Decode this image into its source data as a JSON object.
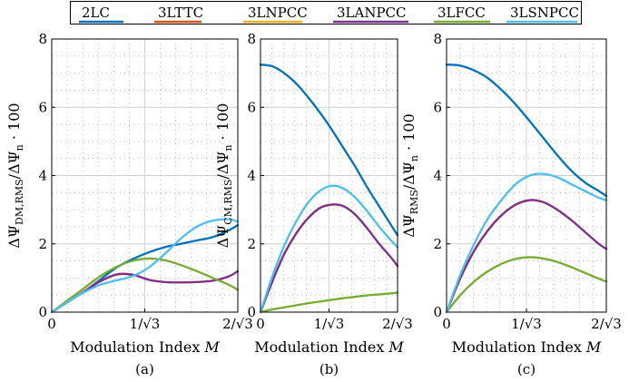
{
  "legend": {
    "entries": [
      {
        "label": "2LC",
        "color": "#0072BD"
      },
      {
        "label": "3LTTC",
        "color": "#D95319"
      },
      {
        "label": "3LNPCC",
        "color": "#EDB120"
      },
      {
        "label": "3LANPCC",
        "color": "#7E2F8E"
      },
      {
        "label": "3LFCC",
        "color": "#77AC30"
      },
      {
        "label": "3LSNPCC",
        "color": "#4DBEEE"
      }
    ]
  },
  "chart_data": [
    {
      "type": "line",
      "panel_label": "(a)",
      "xlabel": "Modulation Index M",
      "ylabel": "ΔΨ_DM,RMS / ΔΨ_n · 100",
      "ylabel_main": "ΔΨ",
      "ylabel_sub": "DM,RMS",
      "ylabel_rest": "/ΔΨ",
      "ylabel_sub2": "n",
      "ylabel_tail": " · 100",
      "xlim": [
        0,
        1.1547
      ],
      "ylim": [
        0,
        8
      ],
      "xticks": [
        0,
        0.5774,
        1.1547
      ],
      "xtick_labels": [
        "0",
        "1/√3",
        "2/√3"
      ],
      "yticks": [
        0,
        2,
        4,
        6,
        8
      ],
      "ytick_labels": [
        "0",
        "2",
        "4",
        "6",
        "8"
      ],
      "grid": true,
      "series": [
        {
          "name": "2LC",
          "x": [
            0,
            0.1,
            0.2,
            0.3,
            0.4,
            0.5,
            0.6,
            0.7,
            0.8,
            0.9,
            1.0,
            1.1,
            1.1547
          ],
          "y": [
            0,
            0.3,
            0.6,
            0.95,
            1.3,
            1.55,
            1.75,
            1.9,
            2.0,
            2.1,
            2.2,
            2.4,
            2.55
          ]
        },
        {
          "name": "3LTTC",
          "x": [
            0,
            0.1,
            0.2,
            0.3,
            0.4,
            0.45,
            0.5
          ],
          "y": [
            0,
            0.3,
            0.6,
            0.9,
            1.1,
            1.12,
            1.08
          ]
        },
        {
          "name": "3LNPCC",
          "x": [
            0,
            0.1,
            0.2,
            0.3,
            0.4,
            0.5,
            0.6,
            0.7,
            0.8,
            0.9,
            1.0
          ],
          "y": [
            0,
            0.3,
            0.6,
            0.9,
            1.1,
            1.1,
            0.95,
            0.88,
            0.87,
            0.88,
            0.92
          ]
        },
        {
          "name": "3LANPCC",
          "x": [
            0,
            0.1,
            0.2,
            0.3,
            0.4,
            0.5,
            0.6,
            0.7,
            0.8,
            0.9,
            1.0,
            1.1,
            1.1547
          ],
          "y": [
            0,
            0.3,
            0.6,
            0.9,
            1.1,
            1.1,
            0.95,
            0.88,
            0.87,
            0.88,
            0.92,
            1.05,
            1.2
          ]
        },
        {
          "name": "3LFCC",
          "x": [
            0,
            0.1,
            0.2,
            0.3,
            0.4,
            0.5,
            0.6,
            0.7,
            0.8,
            0.9,
            1.0,
            1.1,
            1.1547
          ],
          "y": [
            0,
            0.35,
            0.7,
            1.05,
            1.32,
            1.5,
            1.57,
            1.52,
            1.38,
            1.2,
            1.0,
            0.8,
            0.65
          ]
        },
        {
          "name": "3LSNPCC",
          "x": [
            0,
            0.1,
            0.2,
            0.3,
            0.4,
            0.5,
            0.6,
            0.7,
            0.8,
            0.9,
            1.0,
            1.1,
            1.1547
          ],
          "y": [
            0,
            0.3,
            0.58,
            0.8,
            0.93,
            1.05,
            1.3,
            1.7,
            2.15,
            2.5,
            2.68,
            2.72,
            2.65
          ]
        }
      ]
    },
    {
      "type": "line",
      "panel_label": "(b)",
      "xlabel": "Modulation Index M",
      "ylabel": "ΔΨ_CM,RMS / ΔΨ_n · 100",
      "ylabel_main": "ΔΨ",
      "ylabel_sub": "CM,RMS",
      "ylabel_rest": "/ΔΨ",
      "ylabel_sub2": "n",
      "ylabel_tail": " · 100",
      "xlim": [
        0,
        1.1547
      ],
      "ylim": [
        0,
        8
      ],
      "xticks": [
        0,
        0.5774,
        1.1547
      ],
      "xtick_labels": [
        "0",
        "1/√3",
        "2/√3"
      ],
      "yticks": [
        0,
        2,
        4,
        6,
        8
      ],
      "ytick_labels": [
        "0",
        "2",
        "4",
        "6",
        "8"
      ],
      "grid": true,
      "series": [
        {
          "name": "2LC",
          "x": [
            0,
            0.1,
            0.2,
            0.3,
            0.4,
            0.5,
            0.6,
            0.7,
            0.8,
            0.9,
            1.0,
            1.1,
            1.1547
          ],
          "y": [
            7.25,
            7.2,
            7.0,
            6.7,
            6.3,
            5.85,
            5.35,
            4.8,
            4.25,
            3.65,
            3.1,
            2.55,
            2.25
          ]
        },
        {
          "name": "3LTTC",
          "x": [
            0,
            0.1,
            0.2,
            0.3,
            0.4,
            0.5,
            0.6,
            0.65
          ],
          "y": [
            0,
            0.9,
            1.7,
            2.3,
            2.75,
            3.05,
            3.15,
            3.15
          ]
        },
        {
          "name": "3LNPCC",
          "x": [
            0,
            0.1,
            0.2,
            0.3,
            0.4,
            0.5,
            0.6,
            0.7,
            0.8,
            0.9
          ],
          "y": [
            0,
            0.9,
            1.7,
            2.3,
            2.75,
            3.05,
            3.15,
            3.1,
            2.85,
            2.45
          ]
        },
        {
          "name": "3LANPCC",
          "x": [
            0,
            0.1,
            0.2,
            0.3,
            0.4,
            0.5,
            0.6,
            0.7,
            0.8,
            0.9,
            1.0,
            1.1,
            1.1547
          ],
          "y": [
            0,
            0.9,
            1.7,
            2.3,
            2.75,
            3.05,
            3.15,
            3.1,
            2.85,
            2.45,
            2.0,
            1.6,
            1.35
          ]
        },
        {
          "name": "3LFCC",
          "x": [
            0,
            0.1,
            0.2,
            0.3,
            0.4,
            0.5,
            0.6,
            0.7,
            0.8,
            0.9,
            1.0,
            1.1,
            1.1547
          ],
          "y": [
            0,
            0.08,
            0.14,
            0.2,
            0.26,
            0.31,
            0.36,
            0.41,
            0.45,
            0.49,
            0.52,
            0.55,
            0.57
          ]
        },
        {
          "name": "3LSNPCC",
          "x": [
            0,
            0.1,
            0.2,
            0.3,
            0.4,
            0.5,
            0.6,
            0.7,
            0.8,
            0.9,
            1.0,
            1.1,
            1.1547
          ],
          "y": [
            0,
            1.05,
            1.95,
            2.65,
            3.2,
            3.55,
            3.7,
            3.62,
            3.35,
            2.95,
            2.5,
            2.1,
            1.9
          ]
        }
      ]
    },
    {
      "type": "line",
      "panel_label": "(c)",
      "xlabel": "Modulation Index M",
      "ylabel": "ΔΨ_RMS / ΔΨ_n · 100",
      "ylabel_main": "ΔΨ",
      "ylabel_sub": "RMS",
      "ylabel_rest": "/ΔΨ",
      "ylabel_sub2": "n",
      "ylabel_tail": " · 100",
      "xlim": [
        0,
        1.1547
      ],
      "ylim": [
        0,
        8
      ],
      "xticks": [
        0,
        0.5774,
        1.1547
      ],
      "xtick_labels": [
        "0",
        "1/√3",
        "2/√3"
      ],
      "yticks": [
        0,
        2,
        4,
        6,
        8
      ],
      "ytick_labels": [
        "0",
        "2",
        "4",
        "6",
        "8"
      ],
      "grid": true,
      "series": [
        {
          "name": "2LC",
          "x": [
            0,
            0.1,
            0.2,
            0.3,
            0.4,
            0.5,
            0.6,
            0.7,
            0.8,
            0.9,
            1.0,
            1.1,
            1.1547
          ],
          "y": [
            7.25,
            7.22,
            7.08,
            6.85,
            6.5,
            6.08,
            5.6,
            5.1,
            4.6,
            4.15,
            3.8,
            3.55,
            3.4
          ]
        },
        {
          "name": "3LTTC",
          "x": [
            0,
            0.1,
            0.2,
            0.3,
            0.4,
            0.5,
            0.6,
            0.65
          ],
          "y": [
            0,
            1.0,
            1.8,
            2.4,
            2.85,
            3.15,
            3.28,
            3.28
          ]
        },
        {
          "name": "3LNPCC",
          "x": [
            0,
            0.1,
            0.2,
            0.3,
            0.4,
            0.5,
            0.6,
            0.7,
            0.8,
            0.9
          ],
          "y": [
            0,
            1.0,
            1.8,
            2.4,
            2.85,
            3.15,
            3.28,
            3.22,
            3.0,
            2.7
          ]
        },
        {
          "name": "3LANPCC",
          "x": [
            0,
            0.1,
            0.2,
            0.3,
            0.4,
            0.5,
            0.6,
            0.7,
            0.8,
            0.9,
            1.0,
            1.1,
            1.1547
          ],
          "y": [
            0,
            1.0,
            1.8,
            2.4,
            2.85,
            3.15,
            3.28,
            3.22,
            3.0,
            2.7,
            2.35,
            2.0,
            1.85
          ]
        },
        {
          "name": "3LFCC",
          "x": [
            0,
            0.1,
            0.2,
            0.3,
            0.4,
            0.5,
            0.6,
            0.7,
            0.8,
            0.9,
            1.0,
            1.1,
            1.1547
          ],
          "y": [
            0,
            0.5,
            0.9,
            1.2,
            1.42,
            1.56,
            1.61,
            1.57,
            1.47,
            1.32,
            1.15,
            0.98,
            0.9
          ]
        },
        {
          "name": "3LSNPCC",
          "x": [
            0,
            0.1,
            0.2,
            0.3,
            0.4,
            0.5,
            0.6,
            0.7,
            0.8,
            0.9,
            1.0,
            1.1,
            1.1547
          ],
          "y": [
            0,
            1.1,
            2.0,
            2.75,
            3.3,
            3.75,
            4.0,
            4.05,
            3.95,
            3.75,
            3.55,
            3.35,
            3.28
          ]
        }
      ]
    }
  ]
}
